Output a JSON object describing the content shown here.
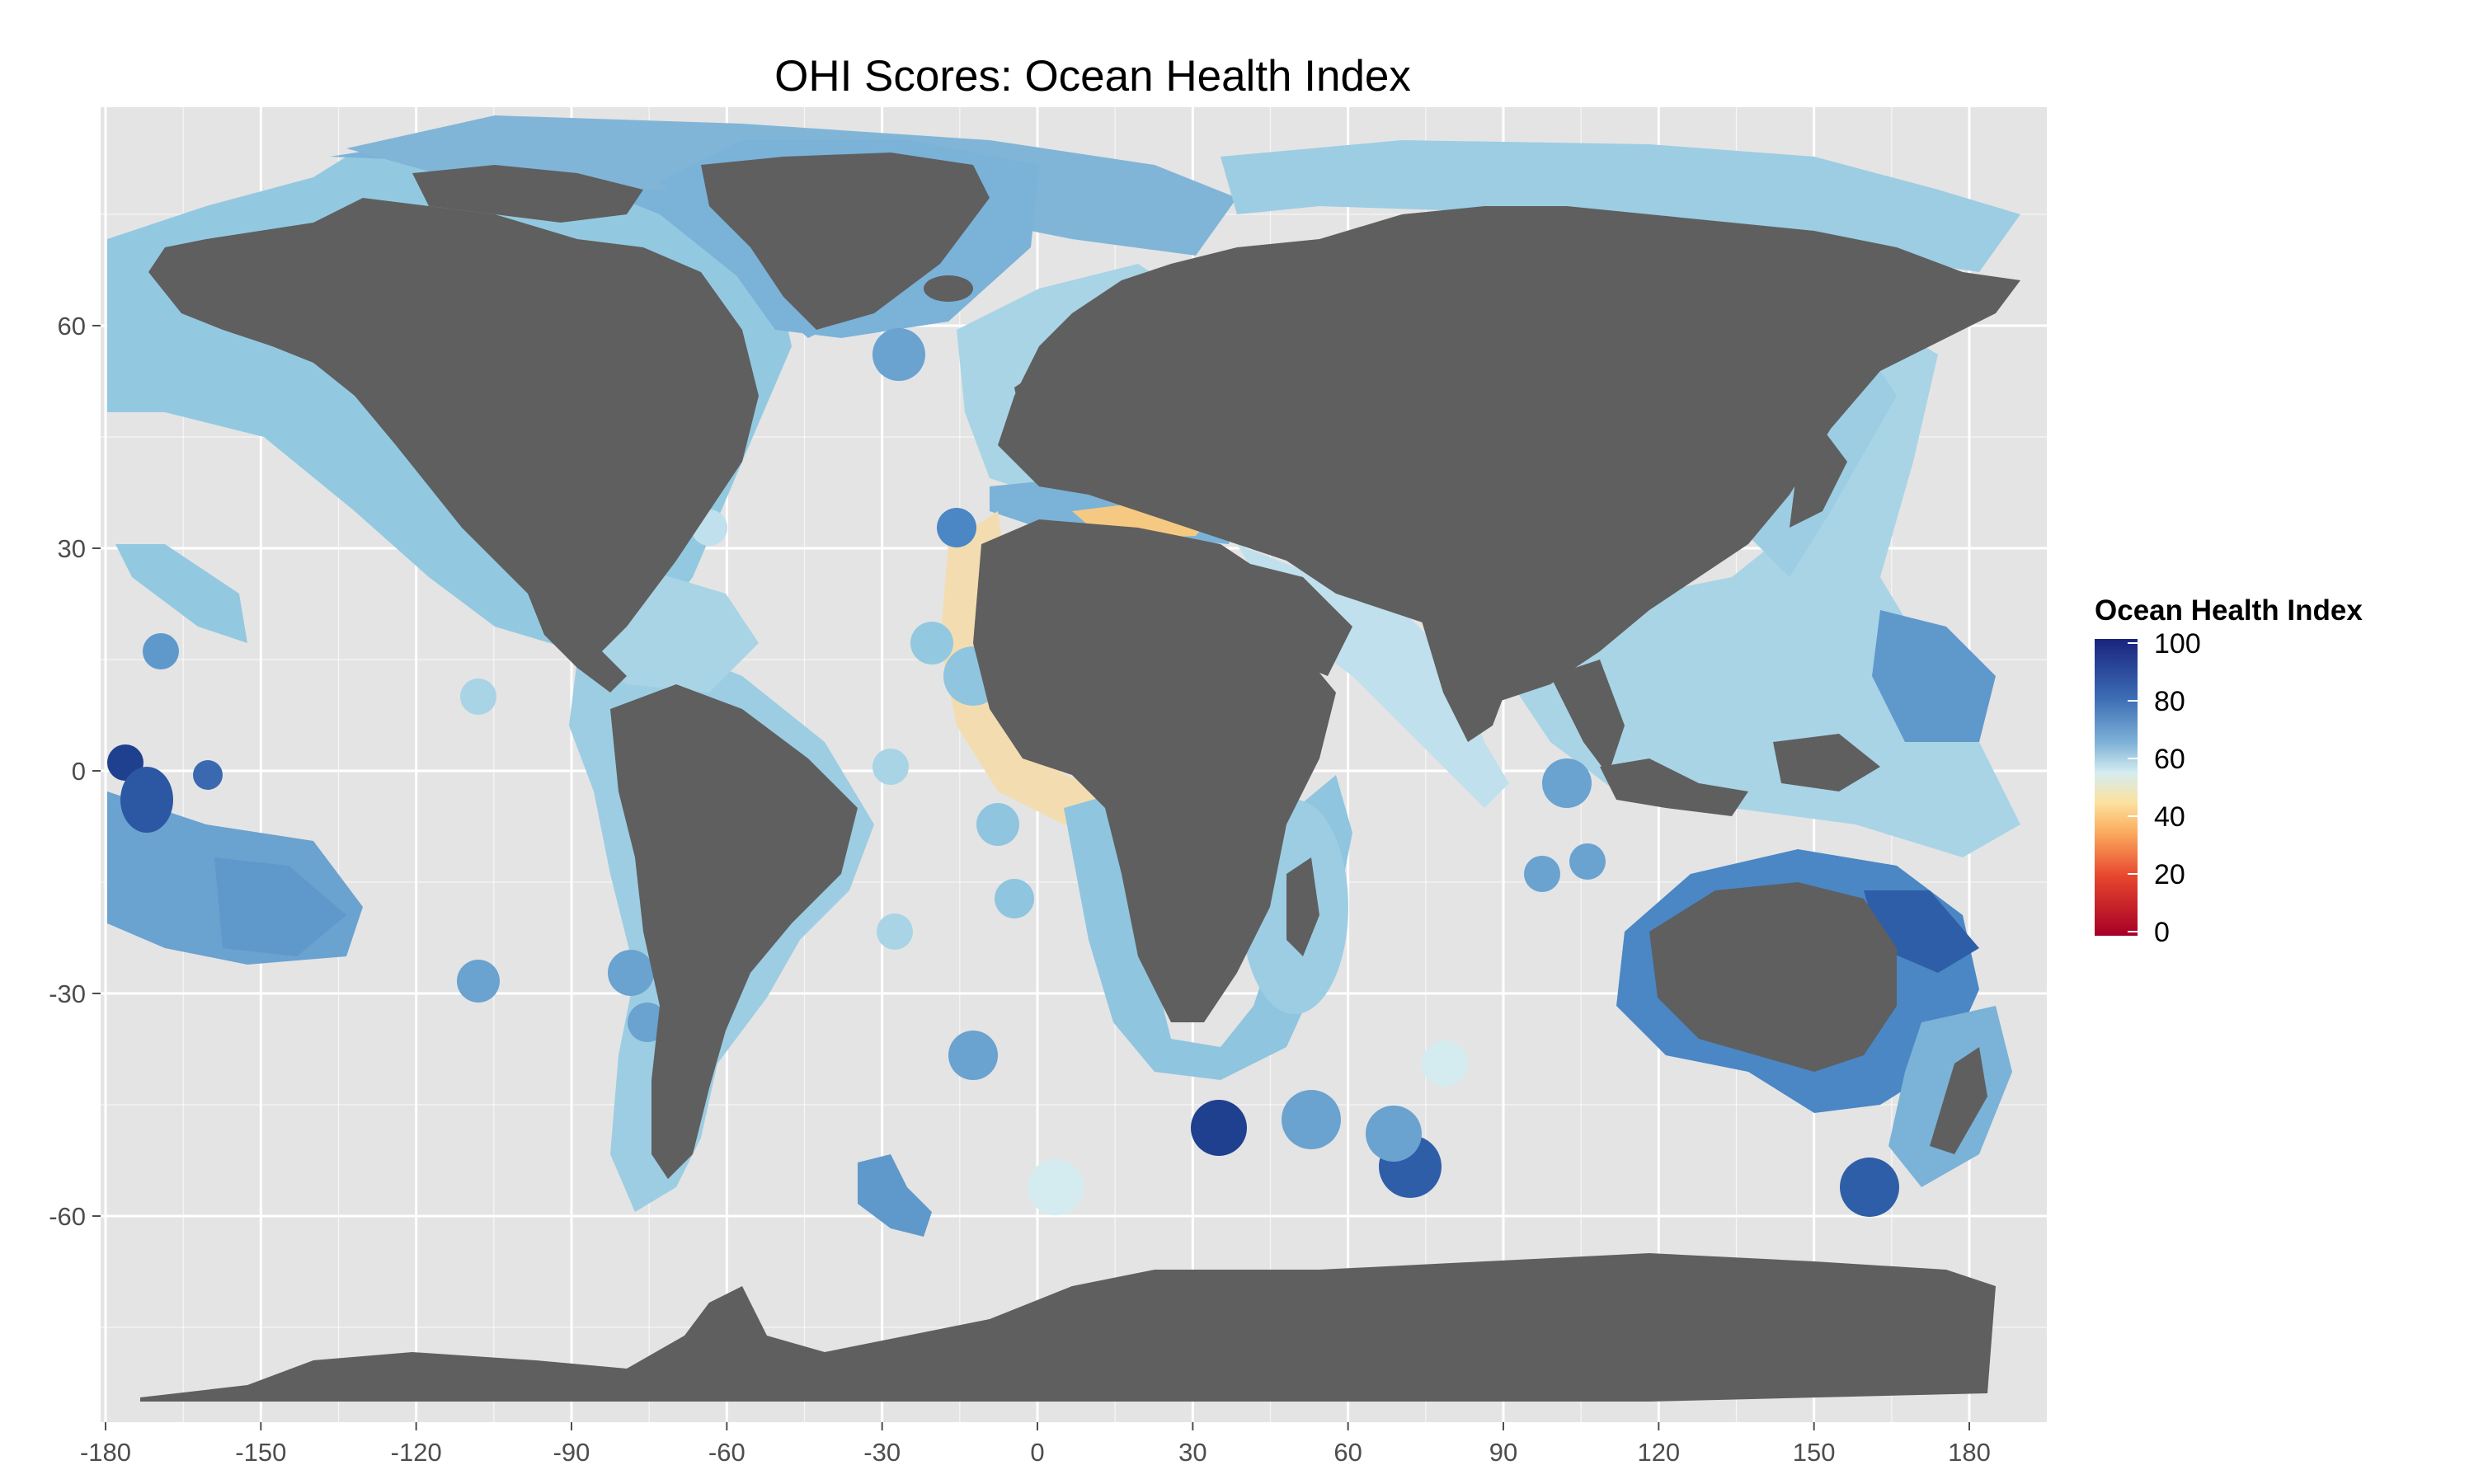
{
  "map": {
    "title": "OHI Scores: Ocean Health Index",
    "x_ticks": [
      "-180",
      "-150",
      "-120",
      "-90",
      "-60",
      "-30",
      "0",
      "30",
      "60",
      "90",
      "120",
      "150",
      "180"
    ],
    "y_ticks": [
      "60",
      "30",
      "0",
      "-30",
      "-60"
    ],
    "x_range": [
      -180,
      180
    ],
    "y_range": [
      -90,
      90
    ],
    "land_color": "#5f5f5f",
    "panel_background": "#e4e4e4",
    "grid_color": "#ffffff"
  },
  "legend": {
    "title": "Ocean Health Index",
    "labels": [
      "100",
      "80",
      "60",
      "40",
      "20",
      "0"
    ],
    "values": [
      100,
      80,
      60,
      40,
      20,
      0
    ],
    "colors": [
      "#1a237e",
      "#3c6db4",
      "#7fb2d8",
      "#d4ecf0",
      "#fbe2a0",
      "#fbad5e",
      "#e8452e",
      "#a50026"
    ]
  }
}
